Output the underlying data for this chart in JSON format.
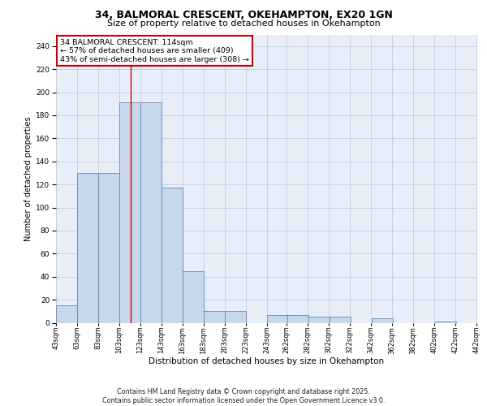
{
  "title_line1": "34, BALMORAL CRESCENT, OKEHAMPTON, EX20 1GN",
  "title_line2": "Size of property relative to detached houses in Okehampton",
  "xlabel": "Distribution of detached houses by size in Okehampton",
  "ylabel": "Number of detached properties",
  "bar_color": "#c8d8ea",
  "bar_edge_color": "#5a8aba",
  "grid_color": "#b8c8dc",
  "bg_color": "#e8eef8",
  "vline_color": "#cc0000",
  "ann_box_color": "#cc0000",
  "annotation_text": "34 BALMORAL CRESCENT: 114sqm\n← 57% of detached houses are smaller (409)\n43% of semi-detached houses are larger (308) →",
  "vline_x": 114,
  "footer": "Contains HM Land Registry data © Crown copyright and database right 2025.\nContains public sector information licensed under the Open Government Licence v3.0.",
  "bin_left_edges": [
    43,
    63,
    83,
    103,
    123,
    143,
    163,
    183,
    203,
    223,
    243,
    263,
    283,
    303,
    323,
    343,
    363,
    383,
    403,
    423
  ],
  "bar_heights": [
    15,
    130,
    130,
    191,
    191,
    117,
    45,
    10,
    10,
    0,
    7,
    7,
    5,
    5,
    0,
    4,
    0,
    0,
    1,
    0
  ],
  "xtick_vals": [
    43,
    63,
    83,
    103,
    123,
    143,
    163,
    183,
    203,
    223,
    243,
    262,
    282,
    302,
    322,
    342,
    362,
    382,
    402,
    422,
    442
  ],
  "xtick_labels": [
    "43sqm",
    "63sqm",
    "83sqm",
    "103sqm",
    "123sqm",
    "143sqm",
    "163sqm",
    "183sqm",
    "203sqm",
    "223sqm",
    "243sqm",
    "262sqm",
    "282sqm",
    "302sqm",
    "322sqm",
    "342sqm",
    "362sqm",
    "382sqm",
    "402sqm",
    "422sqm",
    "442sqm"
  ],
  "ylim": [
    0,
    250
  ],
  "yticks": [
    0,
    20,
    40,
    60,
    80,
    100,
    120,
    140,
    160,
    180,
    200,
    220,
    240
  ],
  "bin_width": 20
}
